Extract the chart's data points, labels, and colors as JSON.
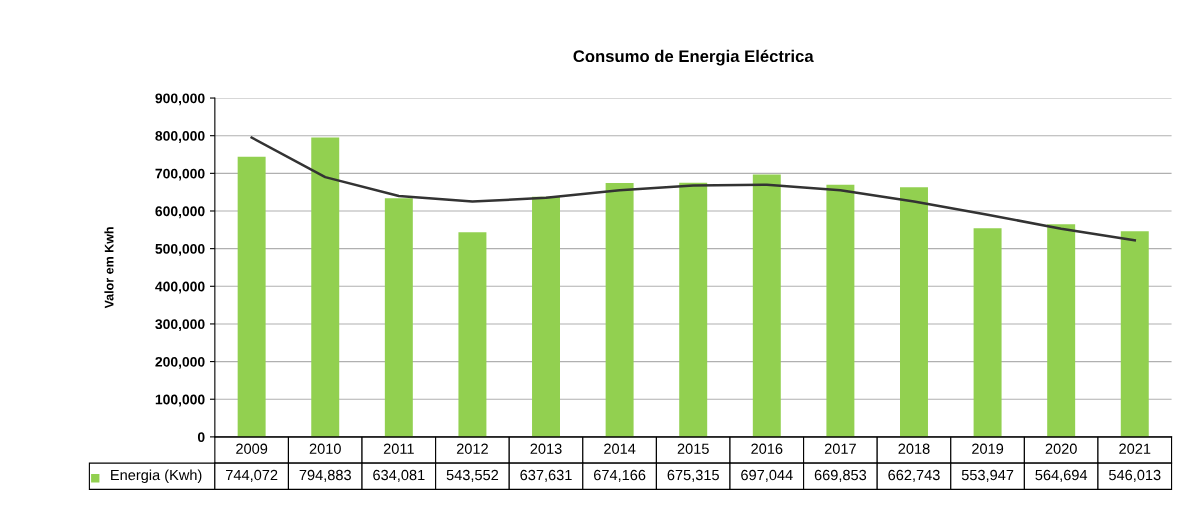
{
  "chart_data": {
    "type": "bar",
    "title": "Consumo de Energia Eléctrica",
    "ylabel": "Valor em Kwh",
    "categories": [
      "2009",
      "2010",
      "2011",
      "2012",
      "2013",
      "2014",
      "2015",
      "2016",
      "2017",
      "2018",
      "2019",
      "2020",
      "2021"
    ],
    "series": [
      {
        "name": "Energia (Kwh)",
        "color": "#92d050",
        "values": [
          744072,
          794883,
          634081,
          543552,
          637631,
          674166,
          675315,
          697044,
          669853,
          662743,
          553947,
          564694,
          546013
        ],
        "value_labels": [
          "744,072",
          "794,883",
          "634,081",
          "543,552",
          "637,631",
          "674,166",
          "675,315",
          "697,044",
          "669,853",
          "662,743",
          "553,947",
          "564,694",
          "546,013"
        ]
      },
      {
        "type": "line",
        "color": "#333333",
        "values": [
          795000,
          690000,
          640000,
          625000,
          635000,
          655000,
          668000,
          670000,
          655000,
          625000,
          590000,
          553000,
          522000
        ]
      }
    ],
    "legend": "bottom left",
    "grid": "y",
    "ylim": [
      0,
      900000
    ],
    "yticks": [
      {
        "value": 0,
        "label": "0"
      },
      {
        "value": 100000,
        "label": "100,000"
      },
      {
        "value": 200000,
        "label": "200,000"
      },
      {
        "value": 300000,
        "label": "300,000"
      },
      {
        "value": 400000,
        "label": "400,000"
      },
      {
        "value": 500000,
        "label": "500,000"
      },
      {
        "value": 600000,
        "label": "600,000"
      },
      {
        "value": 700000,
        "label": "700,000"
      },
      {
        "value": 800000,
        "label": "800,000"
      },
      {
        "value": 900000,
        "label": "900,000"
      }
    ]
  }
}
